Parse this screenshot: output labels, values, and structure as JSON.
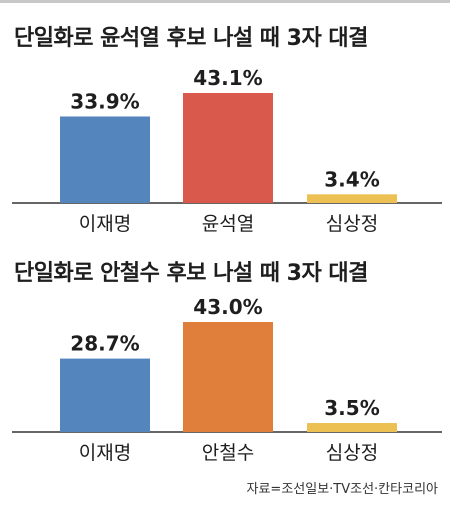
{
  "colors": {
    "lee": "#5585bd",
    "candidate2_chart1": "#d95a4d",
    "candidate2_chart2": "#e07f3b",
    "sim": "#ecc052",
    "baseline": "#333333"
  },
  "chart_data": [
    {
      "type": "bar",
      "title": "단일화로 윤석열 후보 나설 때 3자 대결",
      "categories": [
        "이재명",
        "윤석열",
        "심상정"
      ],
      "values": [
        33.9,
        43.1,
        3.4
      ],
      "value_labels": [
        "33.9%",
        "43.1%",
        "3.4%"
      ],
      "ylim": [
        0,
        43.1
      ],
      "grid": false,
      "legend": "none"
    },
    {
      "type": "bar",
      "title": "단일화로 안철수 후보 나설 때 3자 대결",
      "categories": [
        "이재명",
        "안철수",
        "심상정"
      ],
      "values": [
        28.7,
        43.0,
        3.5
      ],
      "value_labels": [
        "28.7%",
        "43.0%",
        "3.5%"
      ],
      "ylim": [
        0,
        43.0
      ],
      "grid": false,
      "legend": "none"
    }
  ],
  "source": "자료=조선일보·TV조선·칸타코리아"
}
